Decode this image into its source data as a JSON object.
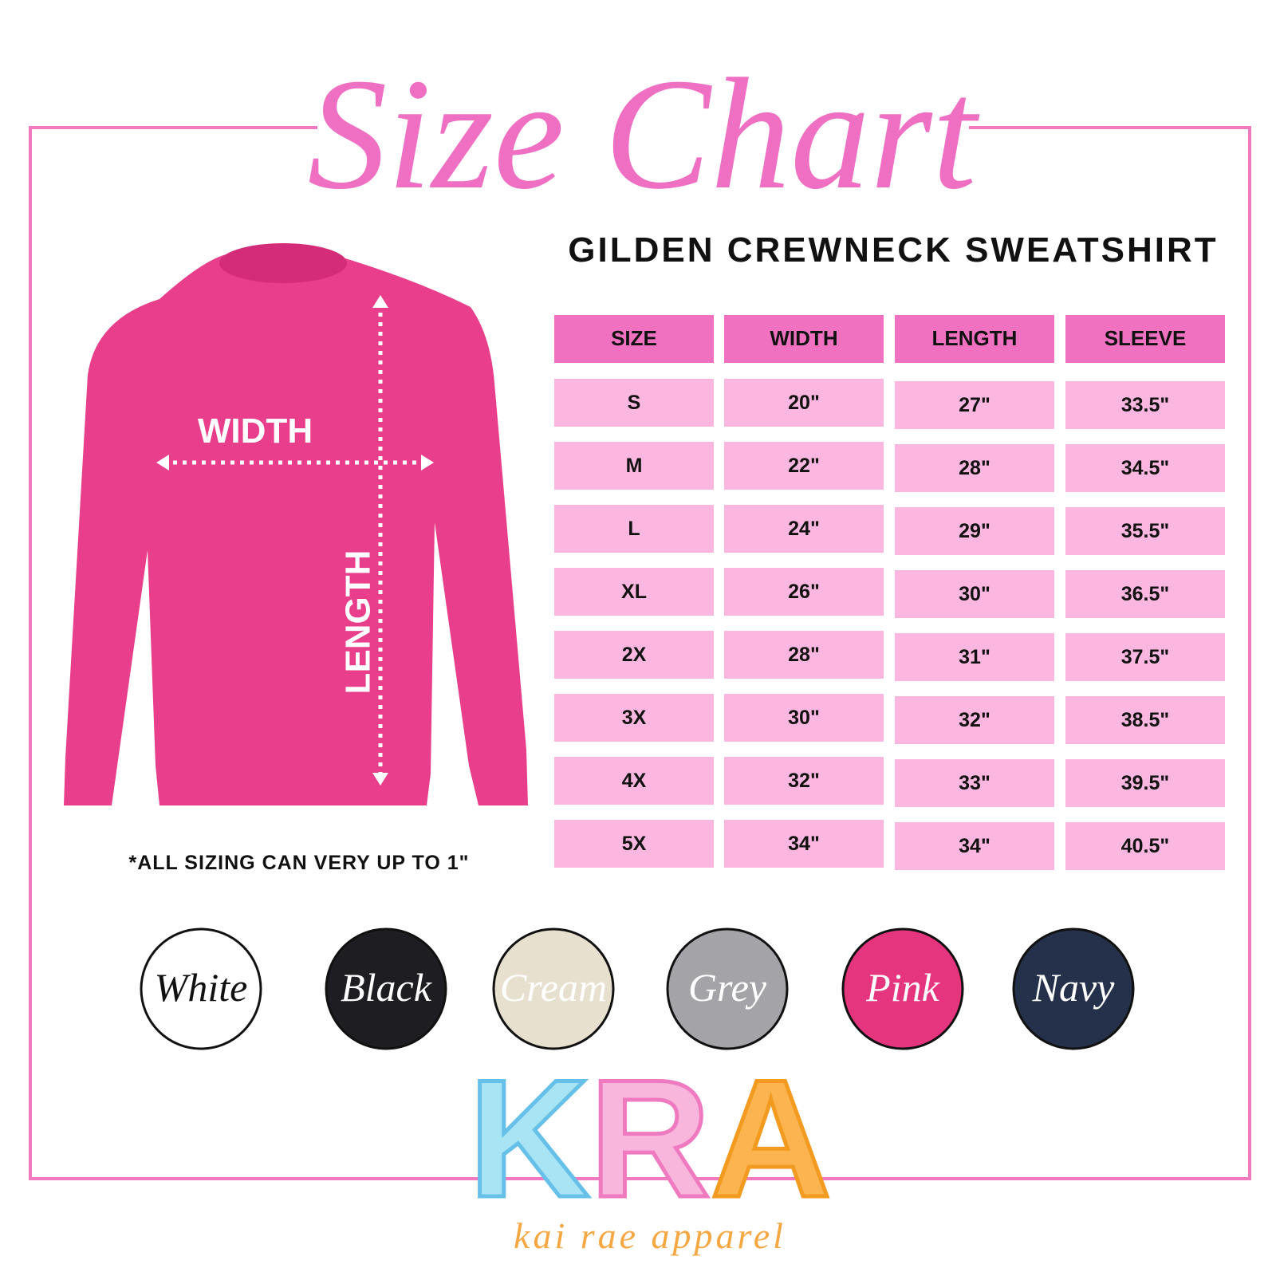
{
  "header": {
    "title": "Size Chart",
    "subtitle": "GILDEN CREWNECK SWEATSHIRT"
  },
  "diagram": {
    "width_label": "WIDTH",
    "length_label": "LENGTH"
  },
  "note": "*ALL SIZING CAN VERY UP TO 1\"",
  "table": {
    "columns": [
      "SIZE",
      "WIDTH",
      "LENGTH",
      "SLEEVE"
    ],
    "rows": [
      [
        "S",
        "20\"",
        "27\"",
        "33.5\""
      ],
      [
        "M",
        "22\"",
        "28\"",
        "34.5\""
      ],
      [
        "L",
        "24\"",
        "29\"",
        "35.5\""
      ],
      [
        "XL",
        "26\"",
        "30\"",
        "36.5\""
      ],
      [
        "2X",
        "28\"",
        "31\"",
        "37.5\""
      ],
      [
        "3X",
        "30\"",
        "32\"",
        "38.5\""
      ],
      [
        "4X",
        "32\"",
        "33\"",
        "39.5\""
      ],
      [
        "5X",
        "34\"",
        "34\"",
        "40.5\""
      ]
    ]
  },
  "colors": [
    "White",
    "Black",
    "Cream",
    "Grey",
    "Pink",
    "Navy"
  ],
  "logo": {
    "mark": "KRA",
    "tagline": "kai rae apparel"
  }
}
